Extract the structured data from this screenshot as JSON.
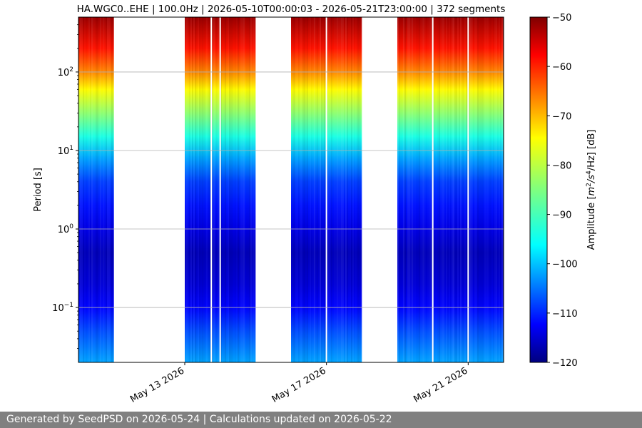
{
  "chart_data": {
    "type": "heatmap",
    "title": "HA.WGC0..EHE | 100.0Hz | 2026-05-10T00:00:03 - 2026-05-21T23:00:00 | 372 segments",
    "ylabel": "Period [s]",
    "colorbar_label": "Amplitude [m²/s⁴/Hz] [dB]",
    "colorbar_label_parts": {
      "pre": "Amplitude [",
      "base1": "m",
      "exp1": "2",
      "slash1": "/",
      "base2": "s",
      "exp2": "4",
      "rest": "/Hz] [dB]"
    },
    "y_scale": "log",
    "y_axis_inverted": true,
    "ylim": [
      0.02,
      500
    ],
    "y_ticks": [
      {
        "value": 0.1,
        "base": "10",
        "exp": "−1"
      },
      {
        "value": 1,
        "base": "10",
        "exp": "0"
      },
      {
        "value": 10,
        "base": "10",
        "exp": "1"
      },
      {
        "value": 100,
        "base": "10",
        "exp": "2"
      }
    ],
    "xlim": [
      "2026-05-10",
      "2026-05-22"
    ],
    "x_ticks": [
      {
        "date": "2026-05-13",
        "label": "May 13 2026"
      },
      {
        "date": "2026-05-17",
        "label": "May 17 2026"
      },
      {
        "date": "2026-05-21",
        "label": "May 21 2026"
      }
    ],
    "data_periods": [
      [
        "2026-05-10",
        "2026-05-11"
      ],
      [
        "2026-05-13",
        "2026-05-15"
      ],
      [
        "2026-05-16",
        "2026-05-18"
      ],
      [
        "2026-05-19",
        "2026-05-22"
      ]
    ],
    "data_gaps": [
      "2026-05-13T18:00",
      "2026-05-14T00:00",
      "2026-05-17T00:00",
      "2026-05-20T00:00",
      "2026-05-21T00:00"
    ],
    "colorbar": {
      "cmap": "jet",
      "vmin": -120,
      "vmax": -50,
      "ticks": [
        -50,
        -60,
        -70,
        -80,
        -90,
        -100,
        -110,
        -120
      ]
    },
    "amplitude_profile": {
      "periods": [
        0.02,
        0.05,
        0.1,
        0.2,
        0.5,
        1,
        2,
        4,
        8,
        15,
        30,
        60,
        100,
        200,
        500
      ],
      "amplitude_db": [
        -100,
        -106,
        -111,
        -114,
        -116,
        -113,
        -110,
        -107,
        -100,
        -92,
        -84,
        -76,
        -68,
        -60,
        -52
      ]
    },
    "grid": true
  },
  "footer": {
    "text": "Generated by SeedPSD on 2026-05-24 | Calculations updated on 2026-05-22"
  }
}
